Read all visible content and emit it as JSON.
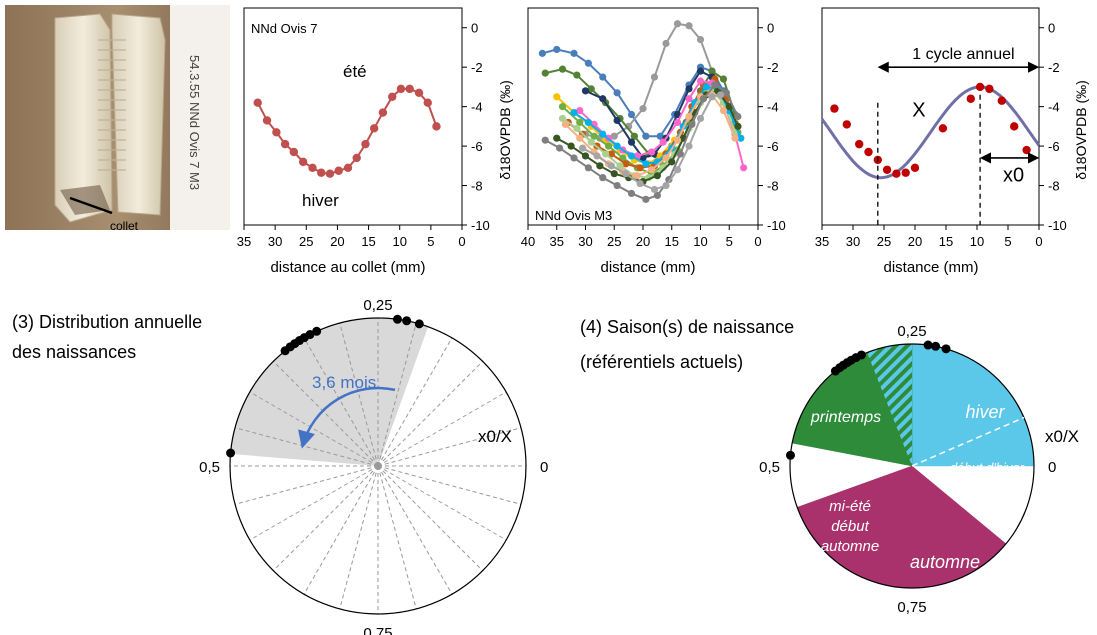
{
  "photo": {
    "label_handwritten": "54.3.55 NNd Ovis 7 M3",
    "collet_label": "collet"
  },
  "axis_ylabel": "δ18OVPDB (‰)",
  "chart_data": [
    {
      "type": "scatter",
      "panel": "NNd Ovis 7",
      "title": "NNd Ovis 7",
      "xlabel": "distance au collet (mm)",
      "ylabel": "δ18OVPDB (‰)",
      "xlim": [
        35,
        0
      ],
      "ylim": [
        -10,
        1
      ],
      "xticks": [
        35,
        30,
        25,
        20,
        15,
        10,
        5,
        0
      ],
      "yticks": [
        0,
        -2,
        -4,
        -6,
        -8,
        -10
      ],
      "annotations": [
        "été",
        "hiver"
      ],
      "series": [
        {
          "color": "#c0504d",
          "x": [
            32.8,
            31.3,
            29.8,
            28.4,
            27.0,
            25.5,
            24.0,
            22.6,
            21.2,
            19.8,
            18.3,
            16.9,
            15.5,
            14.1,
            12.7,
            11.2,
            9.8,
            8.4,
            6.9,
            5.5,
            4.1
          ],
          "y": [
            -3.8,
            -4.7,
            -5.3,
            -5.9,
            -6.3,
            -6.8,
            -7.1,
            -7.35,
            -7.4,
            -7.25,
            -7.1,
            -6.6,
            -5.9,
            -5.1,
            -4.3,
            -3.5,
            -3.1,
            -3.1,
            -3.3,
            -3.8,
            -5.0
          ]
        }
      ]
    },
    {
      "type": "line",
      "panel": "NNd Ovis M3",
      "title": "NNd Ovis M3",
      "xlabel": "distance  (mm)",
      "ylabel": "δ18OVPDB (‰)",
      "xlim": [
        40,
        0
      ],
      "ylim": [
        -10,
        1
      ],
      "xticks": [
        40,
        35,
        30,
        25,
        20,
        15,
        10,
        5,
        0
      ],
      "yticks": [
        0,
        -2,
        -4,
        -6,
        -8,
        -10
      ],
      "series": [
        {
          "color": "#4a7ebb",
          "x": [
            37.5,
            35,
            32,
            29.5,
            27,
            24.5,
            22,
            19.5,
            17,
            14.5,
            12,
            10,
            8,
            6,
            4
          ],
          "y": [
            -1.3,
            -1.1,
            -1.3,
            -1.8,
            -2.5,
            -3.3,
            -4.4,
            -5.5,
            -5.5,
            -4.4,
            -2.9,
            -2.0,
            -2.2,
            -3.2,
            -4.8
          ]
        },
        {
          "color": "#9a9a9a",
          "x": [
            30,
            27.5,
            25,
            22.5,
            20,
            18,
            16,
            14,
            12,
            10,
            8
          ],
          "y": [
            -5.4,
            -5.6,
            -5.5,
            -5.0,
            -4.1,
            -2.5,
            -0.8,
            0.2,
            0.1,
            -0.6,
            -2.2
          ]
        },
        {
          "color": "#548235",
          "x": [
            37,
            34,
            31.5,
            29,
            26.5,
            24,
            21.5,
            19,
            17,
            15,
            12.5,
            10,
            8,
            6,
            4
          ],
          "y": [
            -2.3,
            -2.1,
            -2.4,
            -3.1,
            -3.8,
            -4.6,
            -5.5,
            -6.4,
            -6.7,
            -6.0,
            -4.8,
            -3.2,
            -2.2,
            -2.6,
            -4.4
          ]
        },
        {
          "color": "#1f3864",
          "x": [
            30,
            27,
            24.5,
            22,
            20,
            18,
            16,
            14,
            12,
            10,
            8
          ],
          "y": [
            -3.2,
            -3.6,
            -4.7,
            -5.8,
            -6.6,
            -6.4,
            -5.6,
            -4.4,
            -3.1,
            -2.2,
            -2.5
          ]
        },
        {
          "color": "#ffc000",
          "x": [
            35,
            32,
            29,
            26.5,
            24,
            21.5,
            19,
            17,
            14.5,
            12,
            10,
            8,
            6,
            4,
            3
          ],
          "y": [
            -3.5,
            -4.3,
            -5.0,
            -5.7,
            -6.2,
            -6.7,
            -6.9,
            -6.5,
            -5.7,
            -4.6,
            -3.5,
            -2.9,
            -3.4,
            -4.6,
            -5.6
          ]
        },
        {
          "color": "#70ad47",
          "x": [
            34,
            31,
            28.5,
            26,
            23.5,
            21,
            18.5,
            16.5,
            14,
            11.5,
            9.5,
            7.5,
            5.5,
            3.5
          ],
          "y": [
            -4.0,
            -4.8,
            -5.5,
            -6.0,
            -6.6,
            -7.1,
            -7.4,
            -7.0,
            -6.2,
            -4.8,
            -3.6,
            -3.1,
            -3.9,
            -5.3
          ]
        },
        {
          "color": "#c55a11",
          "x": [
            33,
            30.5,
            28,
            25.5,
            23,
            20.5,
            18,
            16,
            13.5,
            11.5,
            9.5,
            7.5,
            5.5,
            3.5
          ],
          "y": [
            -4.8,
            -5.4,
            -6.0,
            -6.4,
            -6.9,
            -7.1,
            -7.0,
            -6.4,
            -5.3,
            -4.0,
            -2.9,
            -2.6,
            -3.6,
            -5.0
          ]
        },
        {
          "color": "#ff66cc",
          "x": [
            31,
            28.5,
            26,
            23.5,
            21,
            18.5,
            16.5,
            14,
            12,
            10,
            8,
            6,
            4,
            2.5
          ],
          "y": [
            -4.2,
            -4.9,
            -5.6,
            -6.2,
            -6.5,
            -6.3,
            -5.8,
            -4.8,
            -3.6,
            -2.7,
            -2.8,
            -3.8,
            -5.4,
            -7.1
          ]
        },
        {
          "color": "#a9d18e",
          "x": [
            34,
            31.5,
            29,
            26.5,
            24,
            21.5,
            19,
            16.5,
            14.5,
            12,
            10,
            8,
            6,
            4
          ],
          "y": [
            -4.6,
            -5.1,
            -5.8,
            -6.4,
            -7.0,
            -7.5,
            -7.6,
            -7.1,
            -6.4,
            -5.1,
            -3.8,
            -3.2,
            -3.8,
            -5.3
          ]
        },
        {
          "color": "#00b0f0",
          "x": [
            32,
            29.5,
            27,
            24.5,
            22,
            19.5,
            17.5,
            15,
            13,
            11,
            9,
            7,
            5,
            3
          ],
          "y": [
            -4.3,
            -4.8,
            -5.4,
            -6.0,
            -6.5,
            -6.9,
            -6.8,
            -6.1,
            -5.0,
            -3.8,
            -3.0,
            -3.1,
            -4.2,
            -5.6
          ]
        },
        {
          "color": "#375623",
          "x": [
            35,
            32.5,
            30,
            27.5,
            25,
            22.5,
            20,
            17.5,
            15,
            13,
            11,
            9,
            7,
            5,
            3.5
          ],
          "y": [
            -5.6,
            -6.0,
            -6.5,
            -7.0,
            -7.4,
            -7.6,
            -7.8,
            -7.5,
            -6.8,
            -5.6,
            -4.3,
            -3.4,
            -3.2,
            -4.0,
            -5.0
          ]
        },
        {
          "color": "#f4b183",
          "x": [
            33.5,
            31,
            28.5,
            26,
            23.5,
            21,
            18.5,
            16,
            14,
            12,
            10,
            8,
            6,
            4
          ],
          "y": [
            -4.9,
            -5.6,
            -6.3,
            -6.9,
            -7.3,
            -7.5,
            -7.2,
            -6.6,
            -5.7,
            -4.5,
            -3.5,
            -3.4,
            -4.2,
            -5.6
          ]
        },
        {
          "color": "#7f7f7f",
          "x": [
            37,
            34.5,
            32,
            29.5,
            27,
            24.5,
            22,
            19.5,
            17.5,
            15.5,
            13.5,
            11.5,
            9.5,
            7.5,
            5.5,
            3.5
          ],
          "y": [
            -5.7,
            -6.1,
            -6.6,
            -7.1,
            -7.6,
            -8.0,
            -8.4,
            -8.7,
            -8.5,
            -7.7,
            -6.4,
            -4.9,
            -3.6,
            -2.9,
            -3.3,
            -4.5
          ]
        },
        {
          "color": "#a5a5a5",
          "x": [
            30.5,
            28,
            25.5,
            23,
            20.5,
            18,
            16,
            14,
            12,
            10,
            8,
            6.5
          ],
          "y": [
            -6.1,
            -6.5,
            -7.0,
            -7.4,
            -7.9,
            -8.2,
            -8.0,
            -7.2,
            -6.0,
            -4.6,
            -3.5,
            -3.4
          ]
        }
      ]
    },
    {
      "type": "scatter",
      "panel": "modèle",
      "xlabel": "distance (mm)",
      "ylabel": "δ18OVPDB (‰)",
      "xlim": [
        35,
        0
      ],
      "ylim": [
        -10,
        1
      ],
      "xticks": [
        35,
        30,
        25,
        20,
        15,
        10,
        5,
        0
      ],
      "yticks": [
        0,
        -2,
        -4,
        -6,
        -8,
        -10
      ],
      "annotations": [
        "1 cycle annuel",
        "X",
        "x0"
      ],
      "cycle_start": 26,
      "cycle_end": 9.5,
      "x0_from": 9.5,
      "x0_to": 0,
      "fit": {
        "color": "#7070a8",
        "amplitude": 2.3,
        "mean": -5.3,
        "period": 32,
        "max_at": 9.5
      },
      "series": [
        {
          "color": "#c00000",
          "x": [
            33,
            31,
            29,
            27.5,
            26,
            24.5,
            23,
            21.5,
            20,
            15.5,
            11,
            9.5,
            8,
            6,
            4,
            2
          ],
          "y": [
            -4.1,
            -4.9,
            -5.9,
            -6.3,
            -6.7,
            -7.2,
            -7.4,
            -7.35,
            -7.1,
            -5.1,
            -3.6,
            -3.0,
            -3.1,
            -3.7,
            -5.0,
            -6.2
          ]
        }
      ]
    },
    {
      "type": "pie",
      "panel": "circle-3",
      "title": "(3) Distribution annuelle des naissances",
      "axis_label": "x0/X",
      "tick_labels": {
        "0": "0",
        "0.25": "0,25",
        "0.5": "0,5",
        "0.75": "0,75"
      },
      "sector": {
        "from": 0.195,
        "to": 0.487,
        "color": "#d9d9d9"
      },
      "sector_label": "3,6 mois",
      "arrow_color": "#4472c4",
      "births": [
        0.205,
        0.219,
        0.229,
        0.318,
        0.326,
        0.333,
        0.339,
        0.345,
        0.351,
        0.358,
        0.486
      ]
    },
    {
      "type": "pie",
      "panel": "circle-4",
      "title": "(4) Saison(s) de naissance (référentiels actuels)",
      "axis_label": "x0/X",
      "tick_labels": {
        "0": "0",
        "0.25": "0,25",
        "0.5": "0,5",
        "0.75": "0,75"
      },
      "seasons": [
        {
          "label": "hiver",
          "from": 0.0,
          "to": 0.25,
          "color": "#5bc8ea"
        },
        {
          "label": "printemps",
          "from": 0.25,
          "to": 0.47,
          "color": "#2e8b3a"
        },
        {
          "label": "mi-été début automne",
          "from": 0.555,
          "to": 0.68,
          "color": "#a9316c"
        },
        {
          "label": "automne",
          "from": 0.68,
          "to": 0.89,
          "color": "#a9316c"
        }
      ],
      "hatch": {
        "from": 0.25,
        "to": 0.31
      },
      "sub_label": "début d'hiver",
      "births": [
        0.205,
        0.219,
        0.229,
        0.318,
        0.326,
        0.333,
        0.339,
        0.345,
        0.351,
        0.358,
        0.486
      ]
    }
  ]
}
